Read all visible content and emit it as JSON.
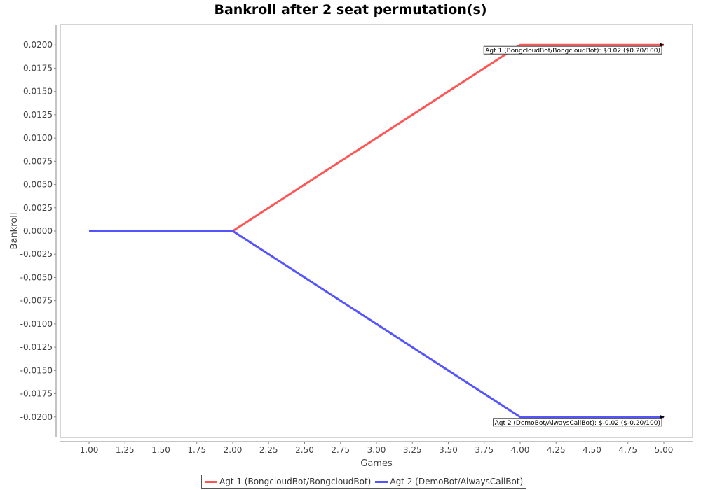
{
  "chart_data": {
    "type": "line",
    "title": "Bankroll after 2 seat permutation(s)",
    "xlabel": "Games",
    "ylabel": "Bankroll",
    "xlim": [
      0.8,
      5.2
    ],
    "ylim": [
      -0.0222,
      0.0222
    ],
    "x_ticks": [
      "1.00",
      "1.25",
      "1.50",
      "1.75",
      "2.00",
      "2.25",
      "2.50",
      "2.75",
      "3.00",
      "3.25",
      "3.50",
      "3.75",
      "4.00",
      "4.25",
      "4.50",
      "4.75",
      "5.00"
    ],
    "y_ticks": [
      "0.0200",
      "0.0175",
      "0.0150",
      "0.0125",
      "0.0100",
      "0.0075",
      "0.0050",
      "0.0025",
      "0.0000",
      "-0.0025",
      "-0.0050",
      "-0.0075",
      "-0.0100",
      "-0.0125",
      "-0.0150",
      "-0.0175",
      "-0.0200"
    ],
    "series": [
      {
        "name": "Agt 1 (BongcloudBot/BongcloudBot)",
        "color": "#ff5555",
        "x": [
          1,
          2,
          4,
          5
        ],
        "y": [
          0,
          0,
          0.02,
          0.02
        ]
      },
      {
        "name": "Agt 2 (DemoBot/AlwaysCallBot)",
        "color": "#5555ff",
        "x": [
          1,
          2,
          4,
          5
        ],
        "y": [
          0,
          0,
          -0.02,
          -0.02
        ]
      }
    ],
    "annotations": [
      {
        "text": "Agt 1 (BongcloudBot/BongcloudBot): $0.02 ($0.20/100)",
        "x": 5,
        "y": 0.02
      },
      {
        "text": "Agt 2 (DemoBot/AlwaysCallBot): $-0.02 ($-0.20/100)",
        "x": 5,
        "y": -0.02
      }
    ],
    "legend": "bottom",
    "grid": false
  }
}
